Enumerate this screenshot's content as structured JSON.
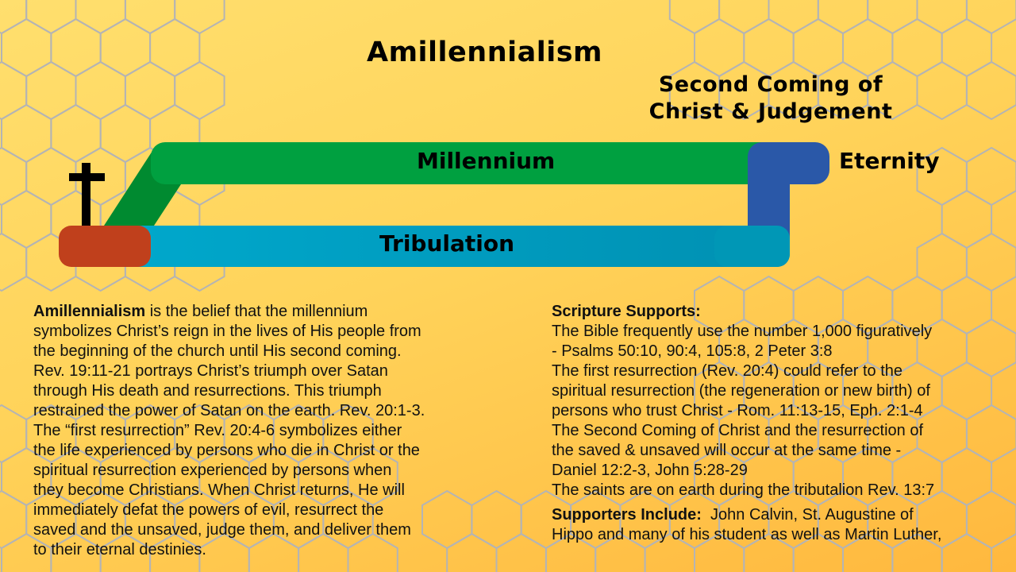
{
  "title": "Amillennialism",
  "subtitle_lines": [
    "Second Coming of",
    "Christ & Judgement"
  ],
  "diagram": {
    "millennium_label": "Millennium",
    "tribulation_label": "Tribulation",
    "eternity_label": "Eternity",
    "icon": "cross-icon",
    "colors": {
      "millennium": "#00a040",
      "transition": "#008a30",
      "tribulation": "#00a2c4",
      "church_start": "#c0401c",
      "eternity": "#2a58a8"
    }
  },
  "left": {
    "bold_term": "Amillennialism",
    "first_line_rest": " is the belief that the millennium",
    "lines": [
      "symbolizes Christ’s reign in the lives of His people from",
      "the beginning of the church until His second coming.",
      "Rev. 19:11-21 portrays Christ’s triumph over Satan",
      "through His death and resurrections. This triumph",
      "restrained the power of Satan on the earth. Rev. 20:1-3.",
      "The “first resurrection” Rev. 20:4-6 symbolizes either",
      "the life experienced by persons who die in Christ or the",
      "spiritual resurrection experienced by persons when",
      "they become Christians. When Christ returns, He will",
      "immediately defat the powers of evil, resurrect the",
      "saved and the unsaved, judge them, and deliver them",
      "to their eternal destinies."
    ]
  },
  "right": {
    "heading": "Scripture Supports:",
    "lines": [
      "The Bible frequently use the number 1,000 figuratively",
      "- Psalms 50:10, 90:4, 105:8, 2 Peter 3:8",
      "The first resurrection (Rev. 20:4) could refer to the",
      "spiritual resurrection (the regeneration or new birth) of",
      "persons who trust Christ - Rom. 11:13-15, Eph. 2:1-4",
      "The Second Coming of Christ and the resurrection of",
      "the saved & unsaved will occur at the same time -",
      "Daniel 12:2-3, John 5:28-29",
      "The saints are on earth during the tributalion Rev. 13:7"
    ],
    "supporters_heading": "Supporters Include:",
    "supporters_lines": [
      "  John Calvin, St. Augustine of",
      "Hippo and many of his student as well as Martin Luther,"
    ]
  }
}
